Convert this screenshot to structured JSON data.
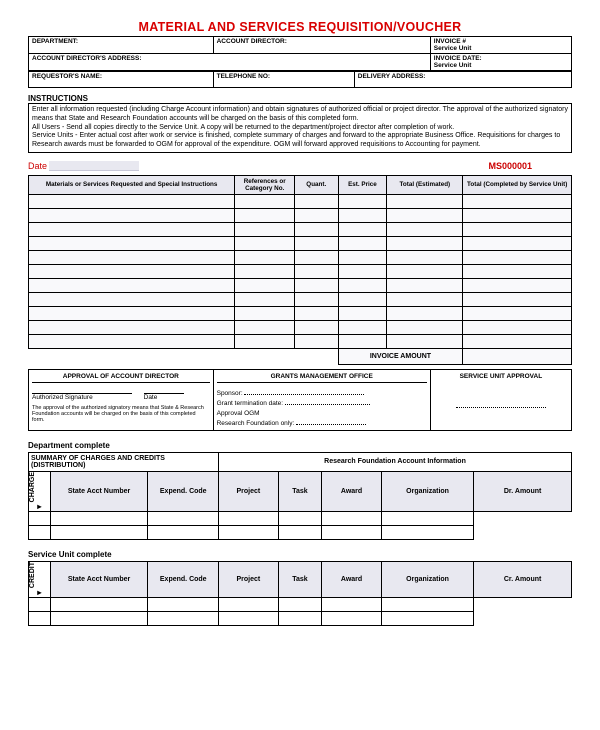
{
  "title": "MATERIAL AND SERVICES REQUISITION/VOUCHER",
  "header": {
    "department": "DEPARTMENT:",
    "account_director": "ACCOUNT DIRECTOR:",
    "invoice_no": "INVOICE #",
    "service_unit1": "Service Unit",
    "acct_dir_address": "ACCOUNT DIRECTOR'S ADDRESS:",
    "invoice_date": "INVOICE DATE:",
    "service_unit2": "Service Unit",
    "requestor": "REQUESTOR'S NAME:",
    "telephone": "TELEPHONE NO:",
    "delivery": "DELIVERY ADDRESS:"
  },
  "instructions": {
    "heading": "INSTRUCTIONS",
    "body": "Enter all information requested (including Charge Account information) and obtain signatures of authorized official or project director. The approval of the authorized signatory means that State and Research Foundation accounts will be charged on the basis of this completed form.\nAll Users        - Send all copies directly to the Service Unit.   A copy will be returned to the department/project director after completion of work.\nService Units  - Enter actual cost after work or service is finished, complete summary of charges and forward to the appropriate Business Office.  Requisitions for charges to Research awards must be forwarded to OGM for approval of the expenditure.  OGM will forward approved requisitions to Accounting for payment."
  },
  "date_label": "Date",
  "voucher_number": "MS000001",
  "items": {
    "cols": [
      "Materials or Services Requested and Special Instructions",
      "References or Category No.",
      "Quant.",
      "Est. Price",
      "Total (Estimated)",
      "Total (Completed by Service Unit)"
    ],
    "col_widths": [
      "38%",
      "11%",
      "8%",
      "9%",
      "14%",
      "20%"
    ],
    "row_count": 11,
    "invoice_label": "INVOICE AMOUNT",
    "header_bg": "#e8e8f0",
    "row_bg": "#f9f9fb",
    "border": "#000000"
  },
  "approval": {
    "acct_dir_head": "APPROVAL OF ACCOUNT DIRECTOR",
    "auth_sig": "Authorized Signature",
    "date": "Date",
    "fine_print": "The approval of the authorized  signatory means that State & Research Foundation accounts will be charged on the basis of this completed form.",
    "grants_head": "GRANTS MANAGEMENT OFFICE",
    "sponsor": "Sponsor:",
    "grant_term": "Grant termination date:",
    "approval_ogm": "Approval  OGM",
    "rf_only": "Research Foundation only:",
    "svc_unit_head": "SERVICE UNIT APPROVAL"
  },
  "dist": {
    "dept_complete": "Department complete",
    "summary_head": "SUMMARY OF CHARGES AND CREDITS  (DISTRIBUTION)",
    "rf_acct_head": "Research Foundation Account Information",
    "charge_label": "CHARGE",
    "svc_complete": "Service Unit complete",
    "credit_label": "CREDIT",
    "cols1": [
      "State Acct Number",
      "Expend. Code",
      "Project",
      "Task",
      "Award",
      "Organization",
      "Dr. Amount"
    ],
    "cols2": [
      "State Acct Number",
      "Expend. Code",
      "Project",
      "Task",
      "Award",
      "Organization",
      "Cr. Amount"
    ],
    "col_widths": [
      "4%",
      "18%",
      "13%",
      "11%",
      "8%",
      "11%",
      "17%",
      "18%"
    ],
    "row_count": 2
  },
  "colors": {
    "red": "#d80000",
    "header_bg": "#e8e8f0",
    "border": "#000000"
  }
}
